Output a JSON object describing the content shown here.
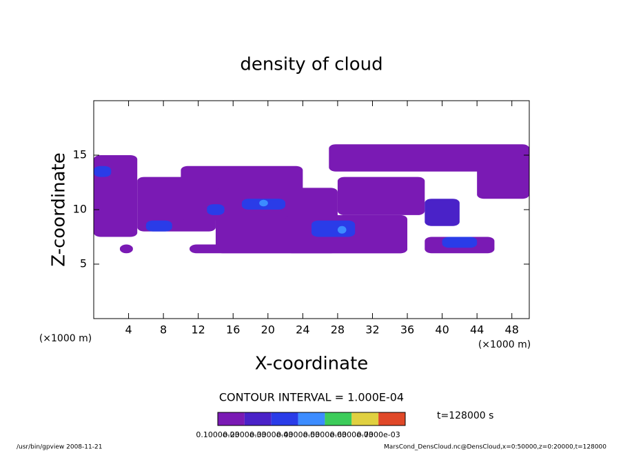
{
  "chart_data": {
    "type": "contour",
    "title": "density of cloud",
    "x_label": "X-coordinate",
    "y_label": "Z-coordinate",
    "x_unit": "(×1000 m)",
    "y_unit": "(×1000 m)",
    "xlim": [
      0,
      50
    ],
    "ylim": [
      0,
      20
    ],
    "xticks": [
      4,
      8,
      12,
      16,
      20,
      24,
      28,
      32,
      36,
      40,
      44,
      48
    ],
    "yticks": [
      5,
      10,
      15
    ],
    "contour_interval": "CONTOUR INTERVAL = 1.000E-04",
    "time_label": "t=128000 s",
    "colorbar": {
      "levels": [
        {
          "value": 0.0001,
          "label": "0.1000e-03"
        },
        {
          "value": 0.0002,
          "label": "0.2000e-03"
        },
        {
          "value": 0.0003,
          "label": "0.3000e-03"
        },
        {
          "value": 0.0004,
          "label": "0.4000e-03"
        },
        {
          "value": 0.0005,
          "label": "0.5000e-03"
        },
        {
          "value": 0.0006,
          "label": "0.6000e-03"
        },
        {
          "value": 0.0007,
          "label": "0.7000e-03"
        }
      ],
      "colors": [
        "#7a1ab4",
        "#4a22c8",
        "#2a3ce8",
        "#3c8cff",
        "#3ccc5a",
        "#e0d040",
        "#e04828"
      ]
    },
    "regions": [
      {
        "x": [
          0,
          5
        ],
        "z": [
          7.5,
          15
        ],
        "value": 0.0001
      },
      {
        "x": [
          5,
          14
        ],
        "z": [
          8,
          13
        ],
        "value": 0.0001
      },
      {
        "x": [
          10,
          24
        ],
        "z": [
          9,
          14
        ],
        "value": 0.0001
      },
      {
        "x": [
          14,
          28
        ],
        "z": [
          6,
          12
        ],
        "value": 0.0001
      },
      {
        "x": [
          22,
          36
        ],
        "z": [
          6,
          9.5
        ],
        "value": 0.0001
      },
      {
        "x": [
          28,
          38
        ],
        "z": [
          9.5,
          13
        ],
        "value": 0.0001
      },
      {
        "x": [
          27,
          50
        ],
        "z": [
          13.5,
          16
        ],
        "value": 0.0001
      },
      {
        "x": [
          38,
          46
        ],
        "z": [
          6,
          7.5
        ],
        "value": 0.0001
      },
      {
        "x": [
          44,
          50
        ],
        "z": [
          11,
          15
        ],
        "value": 0.0001
      },
      {
        "x": [
          11,
          36
        ],
        "z": [
          6,
          6.8
        ],
        "value": 0.0001
      },
      {
        "x": [
          3,
          4.5
        ],
        "z": [
          6,
          6.8
        ],
        "value": 0.0001
      },
      {
        "x": [
          38,
          42
        ],
        "z": [
          8.5,
          11
        ],
        "value": 0.0002
      },
      {
        "x": [
          13,
          15
        ],
        "z": [
          9.5,
          10.5
        ],
        "value": 0.0003
      },
      {
        "x": [
          17,
          22
        ],
        "z": [
          10,
          11
        ],
        "value": 0.0003
      },
      {
        "x": [
          25,
          30
        ],
        "z": [
          7.5,
          9
        ],
        "value": 0.0003
      },
      {
        "x": [
          6,
          9
        ],
        "z": [
          8,
          9
        ],
        "value": 0.0003
      },
      {
        "x": [
          40,
          44
        ],
        "z": [
          6.5,
          7.5
        ],
        "value": 0.0003
      },
      {
        "x": [
          0,
          2
        ],
        "z": [
          13,
          14
        ],
        "value": 0.0003
      },
      {
        "x": [
          19,
          20
        ],
        "z": [
          10.3,
          10.9
        ],
        "value": 0.0004
      },
      {
        "x": [
          28,
          29
        ],
        "z": [
          7.8,
          8.5
        ],
        "value": 0.0004
      }
    ],
    "footer_left": "/usr/bin/gpview   2008-11-21",
    "footer_right": "MarsCond_DensCloud.nc@DensCloud,x=0:50000,z=0:20000,t=128000"
  }
}
